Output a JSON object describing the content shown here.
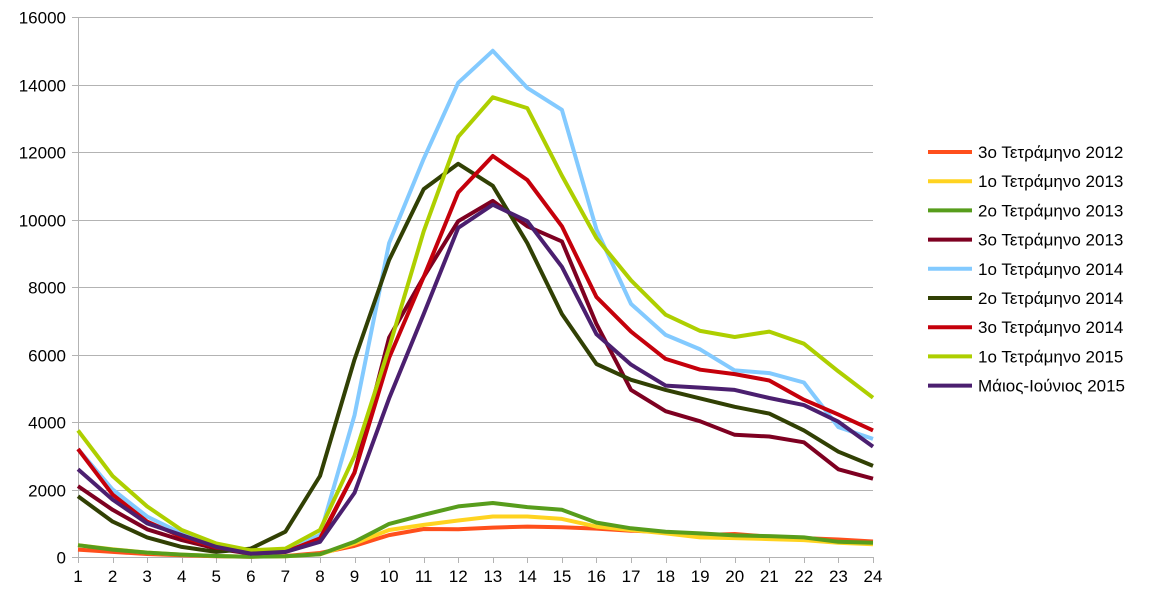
{
  "chart_data": {
    "type": "line",
    "title": "",
    "xlabel": "",
    "ylabel": "",
    "x": [
      1,
      2,
      3,
      4,
      5,
      6,
      7,
      8,
      9,
      10,
      11,
      12,
      13,
      14,
      15,
      16,
      17,
      18,
      19,
      20,
      21,
      22,
      23,
      24
    ],
    "ylim": [
      0,
      16000
    ],
    "yticks": [
      0,
      2000,
      4000,
      6000,
      8000,
      10000,
      12000,
      14000,
      16000
    ],
    "ytick_labels": [
      "0",
      "2000",
      "4000",
      "6000",
      "8000",
      "10000",
      "12000",
      "14000",
      "16000"
    ],
    "xtick_labels": [
      "1",
      "2",
      "3",
      "4",
      "5",
      "6",
      "7",
      "8",
      "9",
      "10",
      "11",
      "12",
      "13",
      "14",
      "15",
      "16",
      "17",
      "18",
      "19",
      "20",
      "21",
      "22",
      "23",
      "24"
    ],
    "grid": "horizontal",
    "legend_position": "right",
    "series": [
      {
        "name": "3ο Τετράμηνο 2012",
        "color": "#ff4f1c",
        "values": [
          220,
          150,
          90,
          50,
          20,
          10,
          30,
          120,
          330,
          650,
          830,
          820,
          870,
          900,
          880,
          840,
          780,
          740,
          650,
          680,
          600,
          560,
          520,
          460
        ]
      },
      {
        "name": "1ο Τετράμηνο 2013",
        "color": "#ffd320",
        "values": [
          350,
          230,
          130,
          70,
          30,
          10,
          20,
          80,
          400,
          800,
          950,
          1080,
          1200,
          1200,
          1130,
          900,
          800,
          700,
          580,
          560,
          530,
          500,
          420,
          380
        ]
      },
      {
        "name": "2ο Τετράμηνο 2013",
        "color": "#579d1c",
        "values": [
          350,
          220,
          130,
          70,
          30,
          10,
          20,
          80,
          450,
          980,
          1250,
          1500,
          1600,
          1480,
          1400,
          1020,
          850,
          750,
          700,
          640,
          620,
          580,
          450,
          420
        ]
      },
      {
        "name": "3ο Τετράμηνο 2013",
        "color": "#7e0021",
        "values": [
          2100,
          1400,
          820,
          500,
          250,
          100,
          150,
          500,
          2500,
          6500,
          8300,
          9950,
          10550,
          9800,
          9350,
          6900,
          4950,
          4320,
          4020,
          3620,
          3570,
          3400,
          2600,
          2320
        ]
      },
      {
        "name": "1ο Τετράμηνο 2014",
        "color": "#83caff",
        "values": [
          3200,
          2000,
          1200,
          700,
          350,
          200,
          200,
          650,
          4200,
          9300,
          11800,
          14050,
          15000,
          13900,
          13250,
          9700,
          7500,
          6580,
          6150,
          5530,
          5450,
          5170,
          3850,
          3500
        ]
      },
      {
        "name": "2ο Τετράμηνο 2014",
        "color": "#314004",
        "values": [
          1800,
          1050,
          580,
          300,
          150,
          250,
          750,
          2400,
          5850,
          8800,
          10900,
          11650,
          11000,
          9300,
          7200,
          5720,
          5250,
          4950,
          4700,
          4450,
          4250,
          3750,
          3120,
          2700
        ]
      },
      {
        "name": "3ο Τετράμηνο 2014",
        "color": "#c5000b",
        "values": [
          3200,
          1850,
          1050,
          600,
          280,
          150,
          150,
          550,
          2500,
          5900,
          8300,
          10800,
          11880,
          11170,
          9800,
          7700,
          6680,
          5870,
          5550,
          5420,
          5230,
          4660,
          4220,
          3750
        ]
      },
      {
        "name": "1ο Τετράμηνο 2015",
        "color": "#aecf00",
        "values": [
          3750,
          2400,
          1500,
          800,
          400,
          200,
          250,
          800,
          3000,
          6200,
          9650,
          12450,
          13620,
          13300,
          11300,
          9450,
          8200,
          7180,
          6700,
          6520,
          6680,
          6320,
          5500,
          4720
        ]
      },
      {
        "name": "Μάιος-Ιούνιος 2015",
        "color": "#4b1f6f",
        "values": [
          2600,
          1700,
          1000,
          650,
          300,
          100,
          150,
          450,
          1900,
          4700,
          7200,
          9750,
          10440,
          9950,
          8600,
          6600,
          5700,
          5080,
          5020,
          4950,
          4710,
          4500,
          4010,
          3270
        ]
      }
    ]
  }
}
